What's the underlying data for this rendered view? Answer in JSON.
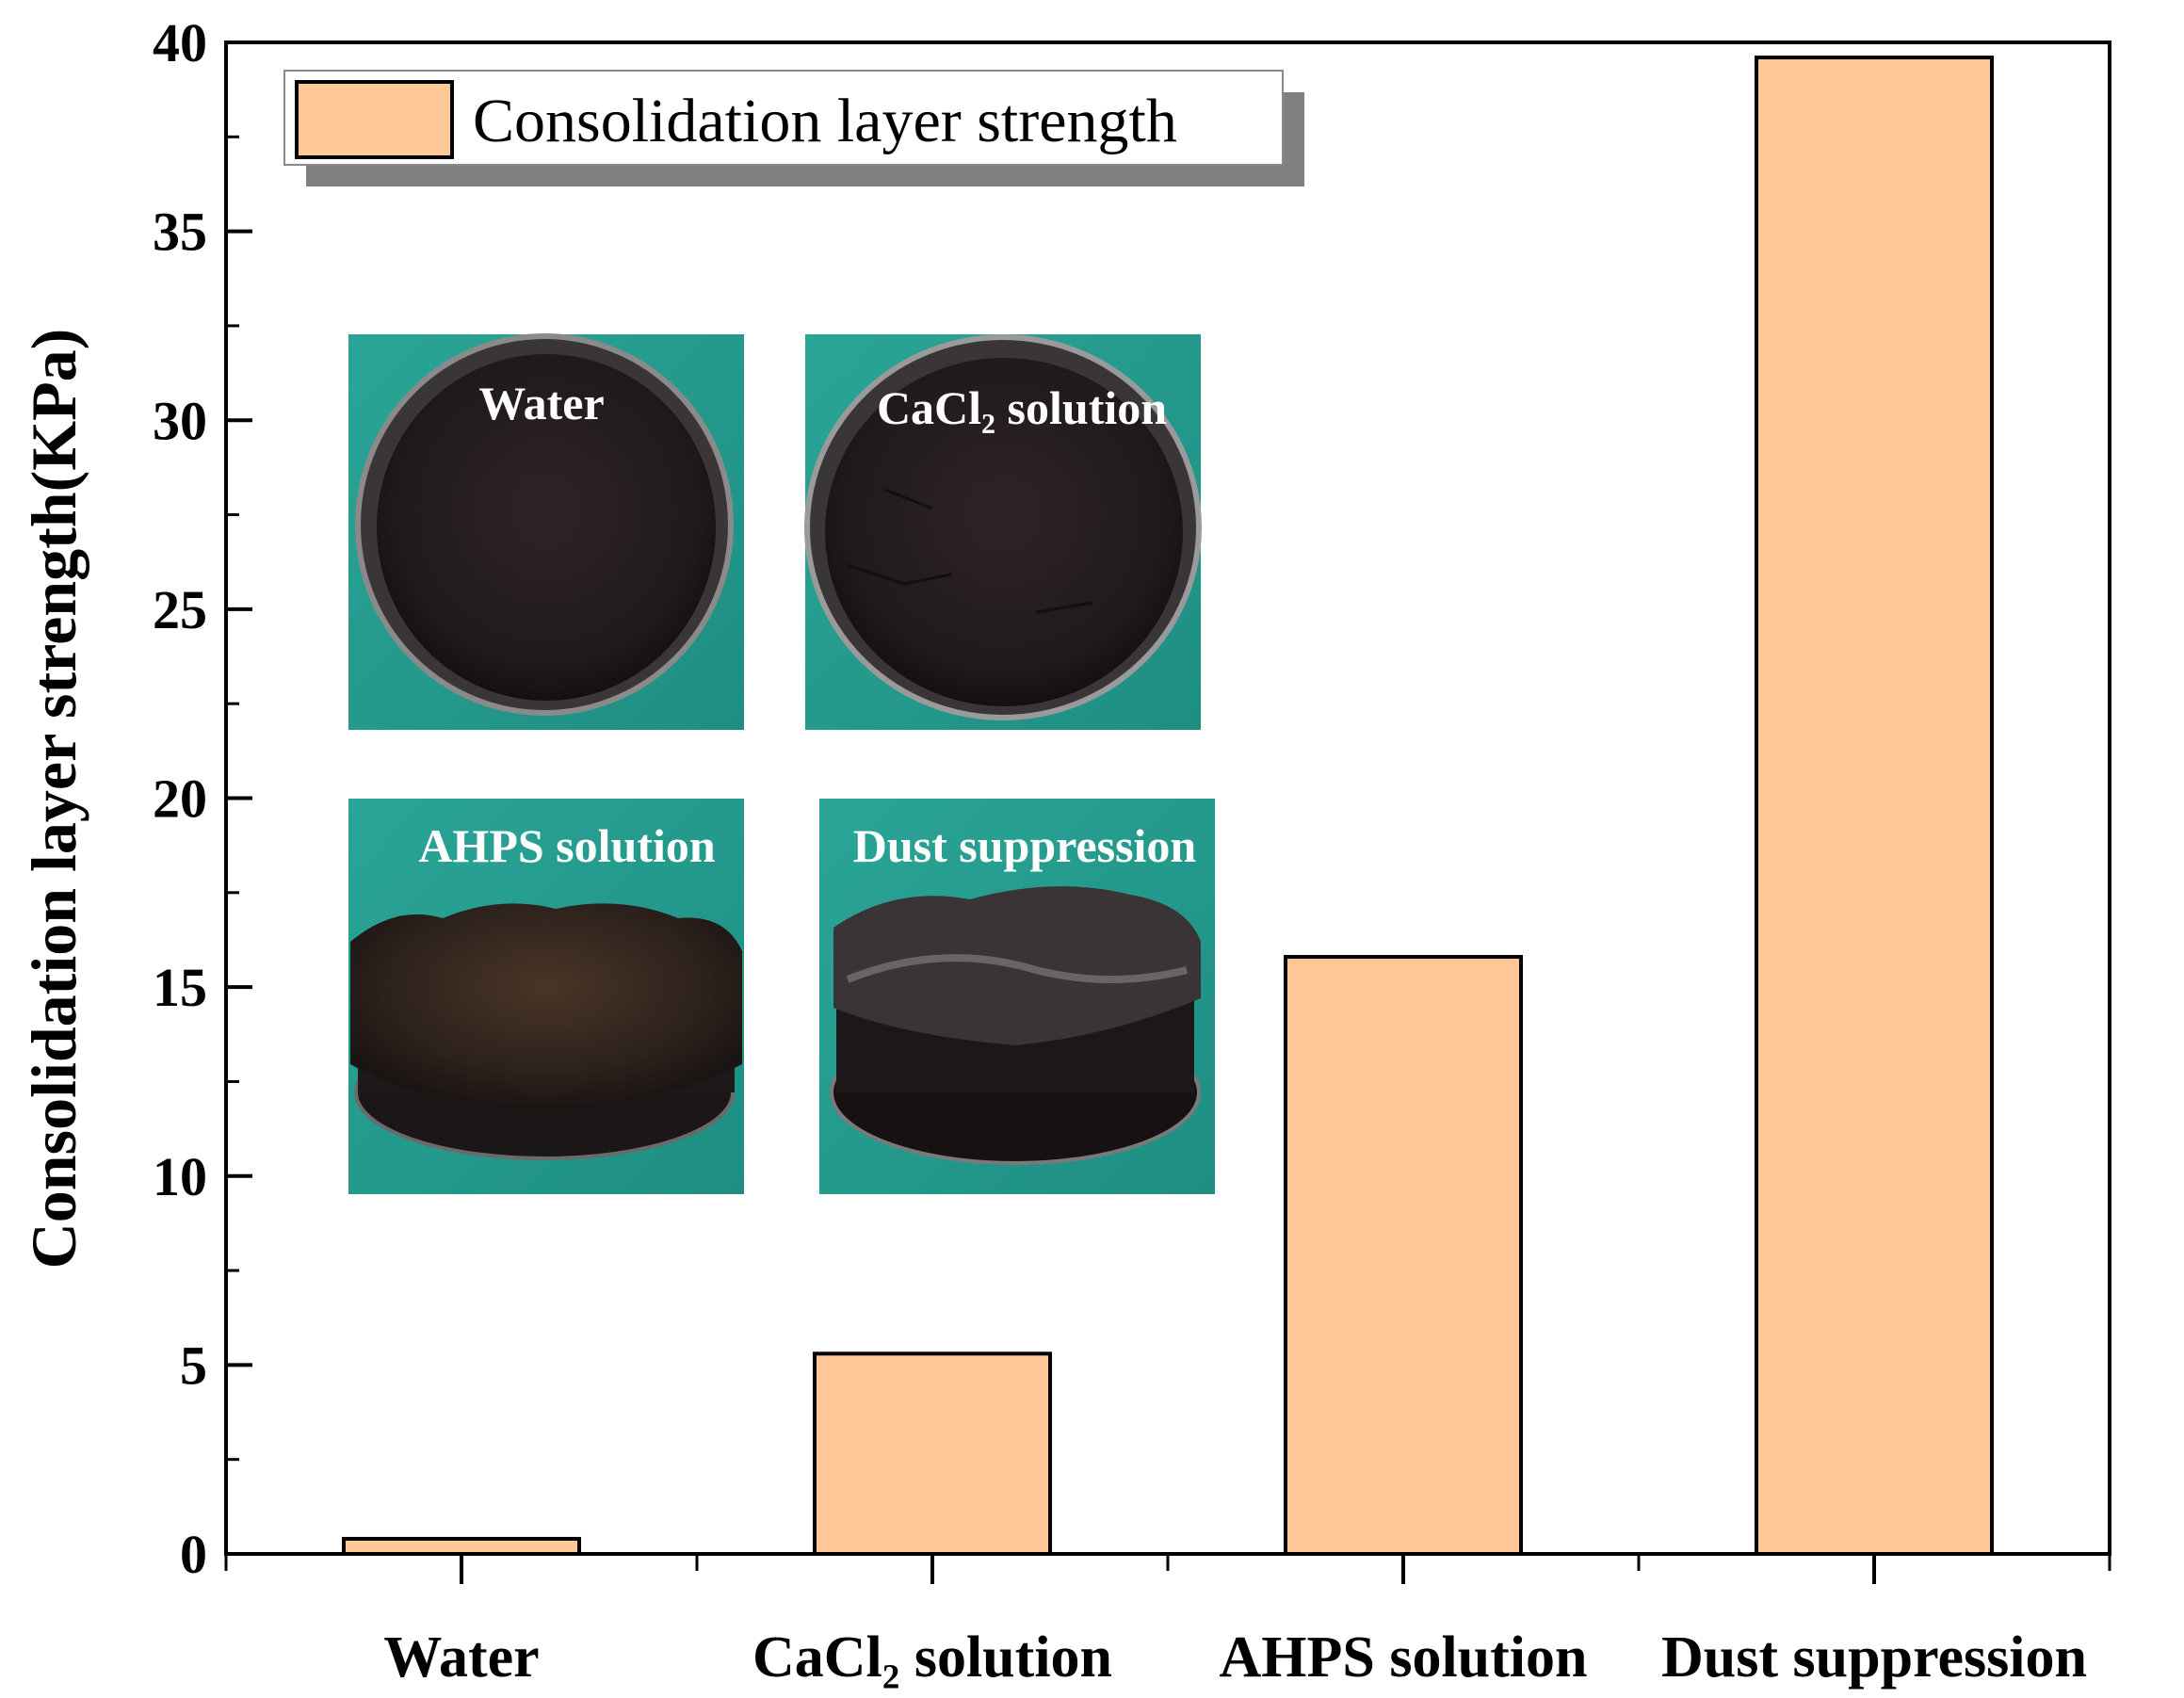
{
  "chart_data": {
    "type": "bar",
    "categories": [
      "Water",
      "CaCl₂ solution",
      "AHPS solution",
      "Dust suppression"
    ],
    "values": [
      0.4,
      5.3,
      15.8,
      39.6
    ],
    "ylabel": "Consolidation layer strength(KPa)",
    "xlabel": "",
    "ylim": [
      0,
      40
    ],
    "yticks": [
      0,
      5,
      10,
      15,
      20,
      25,
      30,
      35,
      40
    ],
    "legend": {
      "entries": [
        "Consolidation layer strength"
      ],
      "placement": "top-left"
    },
    "grid": false,
    "bar_color": "#FDC896",
    "inset_photos": [
      {
        "label": "Water"
      },
      {
        "label": "CaCl₂ solution"
      },
      {
        "label": "AHPS solution"
      },
      {
        "label": "Dust suppression"
      }
    ]
  }
}
